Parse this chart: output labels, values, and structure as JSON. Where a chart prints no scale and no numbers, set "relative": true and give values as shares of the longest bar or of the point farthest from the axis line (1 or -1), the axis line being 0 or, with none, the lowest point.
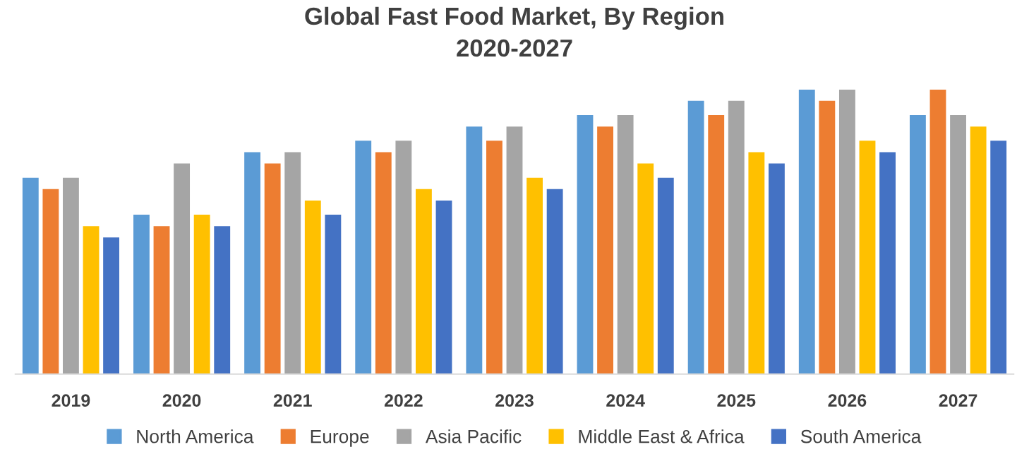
{
  "chart_data": {
    "type": "bar",
    "title": "Global Fast Food Market, By Region\n2020-2027",
    "relative": true,
    "categories": [
      "2019",
      "2020",
      "2021",
      "2022",
      "2023",
      "2024",
      "2025",
      "2026",
      "2027"
    ],
    "series": [
      {
        "name": "North America",
        "color": "#5b9bd5",
        "values": [
          0.69,
          0.56,
          0.78,
          0.82,
          0.87,
          0.91,
          0.96,
          1,
          0.91
        ]
      },
      {
        "name": "Europe",
        "color": "#ed7d31",
        "values": [
          0.65,
          0.52,
          0.74,
          0.78,
          0.82,
          0.87,
          0.91,
          0.96,
          1
        ]
      },
      {
        "name": "Asia Pacific",
        "color": "#a5a5a5",
        "values": [
          0.69,
          0.74,
          0.78,
          0.82,
          0.87,
          0.91,
          0.96,
          1,
          0.91
        ]
      },
      {
        "name": "Middle East & Africa",
        "color": "#ffc000",
        "values": [
          0.52,
          0.56,
          0.61,
          0.65,
          0.69,
          0.74,
          0.78,
          0.82,
          0.87
        ]
      },
      {
        "name": "South America",
        "color": "#4472c4",
        "values": [
          0.48,
          0.52,
          0.56,
          0.61,
          0.65,
          0.69,
          0.74,
          0.78,
          0.82
        ]
      }
    ],
    "legend": "bottom"
  }
}
